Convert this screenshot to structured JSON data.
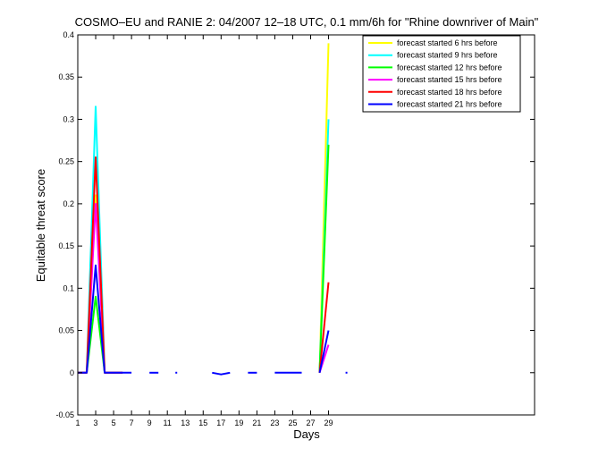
{
  "chart_data": {
    "type": "line",
    "title": "COSMO–EU and RANIE 2: 04/2007 12–18 UTC, 0.1 mm/6h for \"Rhine downriver of Main\"",
    "xlabel": "Days",
    "ylabel": "Equitable threat score",
    "xlim": [
      1,
      52
    ],
    "ylim": [
      -0.05,
      0.4
    ],
    "x_ticks": [
      1,
      3,
      5,
      7,
      9,
      11,
      13,
      15,
      17,
      19,
      21,
      23,
      25,
      27,
      29
    ],
    "y_ticks": [
      -0.05,
      0,
      0.05,
      0.1,
      0.15,
      0.2,
      0.25,
      0.3,
      0.35,
      0.4
    ],
    "legend_position": "top-right",
    "series": [
      {
        "name": "forecast started 6 hrs before",
        "color": "#ffff00",
        "segments": [
          [
            [
              1,
              0
            ],
            [
              2,
              0
            ],
            [
              3,
              0.21
            ],
            [
              4,
              0
            ],
            [
              5,
              0
            ],
            [
              6,
              0
            ]
          ],
          [
            [
              28,
              0
            ],
            [
              29,
              0.39
            ]
          ]
        ]
      },
      {
        "name": "forecast started 9 hrs before",
        "color": "#00ffff",
        "segments": [
          [
            [
              1,
              0
            ],
            [
              2,
              0
            ],
            [
              3,
              0.315
            ],
            [
              4,
              0
            ],
            [
              5,
              0
            ],
            [
              6,
              0
            ]
          ],
          [
            [
              28,
              0
            ],
            [
              29,
              0.3
            ]
          ]
        ]
      },
      {
        "name": "forecast started 12 hrs before",
        "color": "#00ff00",
        "segments": [
          [
            [
              1,
              0
            ],
            [
              2,
              0
            ],
            [
              3,
              0.09
            ],
            [
              4,
              0
            ],
            [
              5,
              0
            ],
            [
              6,
              0
            ]
          ],
          [
            [
              28,
              0
            ],
            [
              29,
              0.27
            ]
          ]
        ]
      },
      {
        "name": "forecast started 15 hrs before",
        "color": "#ff00ff",
        "segments": [
          [
            [
              1,
              0
            ],
            [
              2,
              0
            ],
            [
              3,
              0.2
            ],
            [
              4,
              0
            ],
            [
              5,
              0
            ],
            [
              6,
              0
            ]
          ],
          [
            [
              28,
              0
            ],
            [
              29,
              0.033
            ]
          ]
        ]
      },
      {
        "name": "forecast started 18 hrs before",
        "color": "#ff0000",
        "segments": [
          [
            [
              1,
              0
            ],
            [
              2,
              0
            ],
            [
              3,
              0.255
            ],
            [
              4,
              0
            ],
            [
              5,
              0
            ],
            [
              6,
              0
            ]
          ],
          [
            [
              28,
              0
            ],
            [
              29,
              0.107
            ]
          ]
        ]
      },
      {
        "name": "forecast started 21 hrs before",
        "color": "#0000ff",
        "segments": [
          [
            [
              1,
              0
            ],
            [
              2,
              0
            ],
            [
              3,
              0.127
            ],
            [
              4,
              0
            ],
            [
              5,
              0
            ],
            [
              6,
              0
            ],
            [
              7,
              0
            ]
          ],
          [
            [
              9,
              0
            ],
            [
              10,
              0
            ]
          ],
          [
            [
              12,
              0
            ]
          ],
          [
            [
              16,
              0
            ],
            [
              17,
              -0.002
            ],
            [
              18,
              0
            ]
          ],
          [
            [
              20,
              0
            ],
            [
              21,
              0
            ]
          ],
          [
            [
              23,
              0
            ],
            [
              24,
              0
            ],
            [
              25,
              0
            ],
            [
              26,
              0
            ]
          ],
          [
            [
              28,
              0
            ],
            [
              29,
              0.05
            ]
          ],
          [
            [
              31,
              0
            ]
          ]
        ]
      }
    ]
  }
}
